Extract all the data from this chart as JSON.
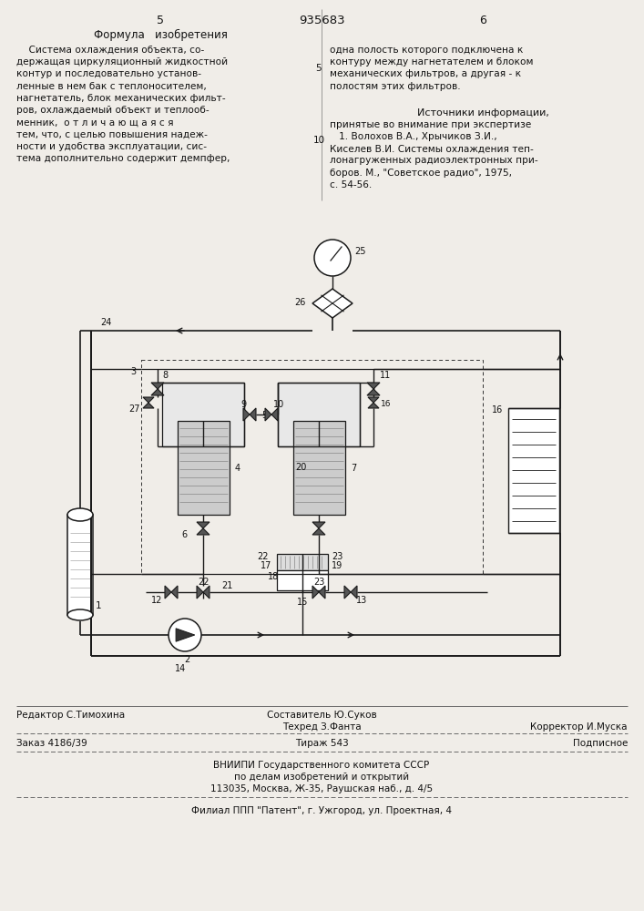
{
  "page_number_left": "5",
  "page_number_center": "935683",
  "page_number_right": "6",
  "left_header": "Формула   изобретения",
  "left_text": [
    "    Система охлаждения объекта, со-",
    "держащая циркуляционный жидкостной",
    "контур и последовательно установ-",
    "ленные в нем бак с теплоносителем,",
    "нагнетатель, блок механических фильт-",
    "ров, охлаждаемый объект и теплооб-",
    "менник,  о т л и ч а ю щ а я с я",
    "тем, что, с целью повышения надеж-",
    "ности и удобства эксплуатации, сис-",
    "тема дополнительно содержит демпфер,"
  ],
  "right_text_top": [
    "одна полость которого подключена к",
    "контуру между нагнетателем и блоком",
    "механических фильтров, а другая - к",
    "полостям этих фильтров."
  ],
  "right_header": "Источники информации,",
  "right_text_bottom": [
    "принятые во внимание при экспертизе",
    "   1. Волохов В.А., Хрычиков З.И.,",
    "Киселев В.И. Системы охлаждения теп-",
    "лонагруженных радиоэлектронных при-",
    "боров. М., \"Советское радио\", 1975,",
    "с. 54-56."
  ],
  "bottom_line1_left": "Редактор С.Тимохина",
  "bottom_line1_center1": "Составитель Ю.Суков",
  "bottom_line1_center2": "Техред З.Фанта",
  "bottom_line1_right": "Корректор И.Муска",
  "bottom_line2_left": "Заказ 4186/39",
  "bottom_line2_center": "Тираж 543",
  "bottom_line2_right": "Подписное",
  "bottom_line3": "ВНИИПИ Государственного комитета СССР",
  "bottom_line4": "по делам изобретений и открытий",
  "bottom_line5": "113035, Москва, Ж-35, Раушская наб., д. 4/5",
  "bottom_line6": "Филиал ППП \"Патент\", г. Ужгород, ул. Проектная, 4",
  "bg_color": "#f0ede8"
}
